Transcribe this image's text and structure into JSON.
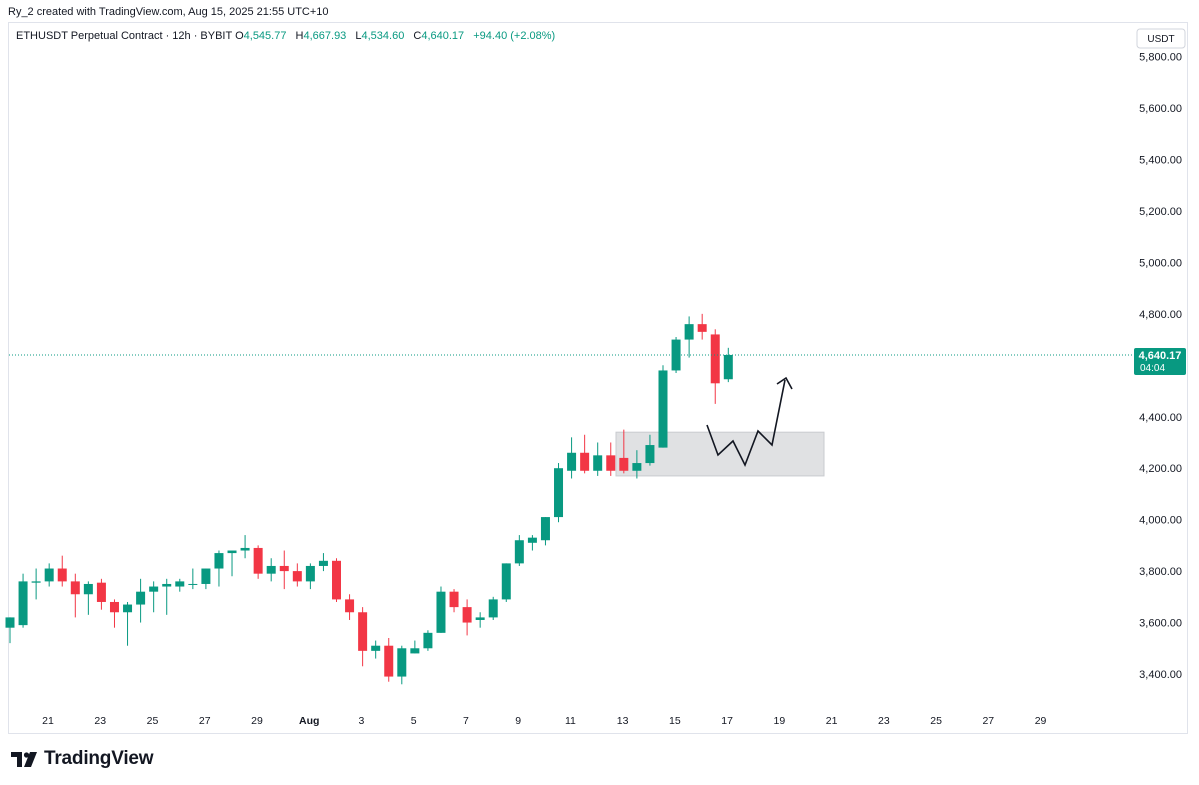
{
  "header": {
    "attribution": "Ry_2 created with TradingView.com, Aug 15, 2025 21:55 UTC+10"
  },
  "legend": {
    "symbol": "ETHUSDT Perpetual Contract · 12h · BYBIT",
    "o_label": "O",
    "o_value": "4,545.77",
    "h_label": "H",
    "h_value": "4,667.93",
    "l_label": "L",
    "l_value": "4,534.60",
    "c_label": "C",
    "c_value": "4,640.17",
    "change": "+94.40 (+2.08%)"
  },
  "price_axis": {
    "currency": "USDT",
    "tick_labels": [
      "5,800.00",
      "5,600.00",
      "5,400.00",
      "5,200.00",
      "5,000.00",
      "4,800.00",
      "4,400.00",
      "4,200.00",
      "4,000.00",
      "3,800.00",
      "3,600.00",
      "3,400.00"
    ],
    "last_price_label": "4,640.17",
    "countdown": "04:04"
  },
  "time_axis": {
    "tick_labels": [
      "21",
      "23",
      "25",
      "27",
      "29",
      "Aug",
      "3",
      "5",
      "7",
      "9",
      "11",
      "13",
      "15",
      "17",
      "19",
      "21",
      "23",
      "25",
      "27",
      "29"
    ]
  },
  "colors": {
    "up": "#089981",
    "down": "#f23645",
    "zone": "#e0e1e3",
    "grid": "#f0f3fa"
  },
  "chart_data": {
    "type": "candlestick",
    "symbol": "ETHUSDT",
    "interval": "12h",
    "exchange": "BYBIT",
    "y_range": [
      3250,
      5900
    ],
    "y_ticks": [
      3400,
      3600,
      3800,
      4000,
      4200,
      4400,
      4800,
      5000,
      5200,
      5400,
      5600,
      5800
    ],
    "x_ticks": [
      "21",
      "23",
      "25",
      "27",
      "29",
      "Aug",
      "3",
      "5",
      "7",
      "9",
      "11",
      "13",
      "15",
      "17",
      "19",
      "21",
      "23",
      "25",
      "27",
      "29"
    ],
    "last_price": 4640.17,
    "candles": [
      {
        "o": 3580,
        "h": 3620,
        "l": 3520,
        "c": 3620
      },
      {
        "o": 3590,
        "h": 3790,
        "l": 3580,
        "c": 3760
      },
      {
        "o": 3755,
        "h": 3810,
        "l": 3690,
        "c": 3760
      },
      {
        "o": 3760,
        "h": 3830,
        "l": 3740,
        "c": 3810
      },
      {
        "o": 3810,
        "h": 3860,
        "l": 3740,
        "c": 3760
      },
      {
        "o": 3760,
        "h": 3790,
        "l": 3620,
        "c": 3710
      },
      {
        "o": 3710,
        "h": 3760,
        "l": 3630,
        "c": 3750
      },
      {
        "o": 3755,
        "h": 3770,
        "l": 3650,
        "c": 3680
      },
      {
        "o": 3680,
        "h": 3690,
        "l": 3580,
        "c": 3640
      },
      {
        "o": 3640,
        "h": 3680,
        "l": 3510,
        "c": 3670
      },
      {
        "o": 3670,
        "h": 3770,
        "l": 3600,
        "c": 3720
      },
      {
        "o": 3720,
        "h": 3760,
        "l": 3640,
        "c": 3740
      },
      {
        "o": 3740,
        "h": 3770,
        "l": 3630,
        "c": 3750
      },
      {
        "o": 3740,
        "h": 3770,
        "l": 3720,
        "c": 3760
      },
      {
        "o": 3750,
        "h": 3810,
        "l": 3730,
        "c": 3750
      },
      {
        "o": 3750,
        "h": 3810,
        "l": 3730,
        "c": 3810
      },
      {
        "o": 3810,
        "h": 3880,
        "l": 3740,
        "c": 3870
      },
      {
        "o": 3870,
        "h": 3880,
        "l": 3780,
        "c": 3880
      },
      {
        "o": 3880,
        "h": 3940,
        "l": 3850,
        "c": 3890
      },
      {
        "o": 3890,
        "h": 3900,
        "l": 3770,
        "c": 3790
      },
      {
        "o": 3790,
        "h": 3850,
        "l": 3760,
        "c": 3820
      },
      {
        "o": 3820,
        "h": 3880,
        "l": 3730,
        "c": 3800
      },
      {
        "o": 3800,
        "h": 3830,
        "l": 3740,
        "c": 3760
      },
      {
        "o": 3760,
        "h": 3830,
        "l": 3730,
        "c": 3820
      },
      {
        "o": 3820,
        "h": 3870,
        "l": 3800,
        "c": 3840
      },
      {
        "o": 3840,
        "h": 3850,
        "l": 3680,
        "c": 3690
      },
      {
        "o": 3690,
        "h": 3710,
        "l": 3610,
        "c": 3640
      },
      {
        "o": 3640,
        "h": 3660,
        "l": 3430,
        "c": 3490
      },
      {
        "o": 3490,
        "h": 3530,
        "l": 3460,
        "c": 3510
      },
      {
        "o": 3510,
        "h": 3540,
        "l": 3370,
        "c": 3390
      },
      {
        "o": 3390,
        "h": 3510,
        "l": 3360,
        "c": 3500
      },
      {
        "o": 3480,
        "h": 3530,
        "l": 3480,
        "c": 3500
      },
      {
        "o": 3500,
        "h": 3570,
        "l": 3490,
        "c": 3560
      },
      {
        "o": 3560,
        "h": 3740,
        "l": 3560,
        "c": 3720
      },
      {
        "o": 3720,
        "h": 3730,
        "l": 3640,
        "c": 3660
      },
      {
        "o": 3660,
        "h": 3690,
        "l": 3550,
        "c": 3600
      },
      {
        "o": 3610,
        "h": 3640,
        "l": 3580,
        "c": 3620
      },
      {
        "o": 3620,
        "h": 3700,
        "l": 3610,
        "c": 3690
      },
      {
        "o": 3690,
        "h": 3830,
        "l": 3680,
        "c": 3830
      },
      {
        "o": 3830,
        "h": 3940,
        "l": 3820,
        "c": 3920
      },
      {
        "o": 3910,
        "h": 3940,
        "l": 3880,
        "c": 3930
      },
      {
        "o": 3920,
        "h": 4010,
        "l": 3900,
        "c": 4010
      },
      {
        "o": 4010,
        "h": 4220,
        "l": 3990,
        "c": 4200
      },
      {
        "o": 4190,
        "h": 4320,
        "l": 4160,
        "c": 4260
      },
      {
        "o": 4260,
        "h": 4330,
        "l": 4180,
        "c": 4190
      },
      {
        "o": 4190,
        "h": 4300,
        "l": 4170,
        "c": 4250
      },
      {
        "o": 4250,
        "h": 4300,
        "l": 4170,
        "c": 4190
      },
      {
        "o": 4240,
        "h": 4350,
        "l": 4180,
        "c": 4190
      },
      {
        "o": 4190,
        "h": 4270,
        "l": 4160,
        "c": 4220
      },
      {
        "o": 4220,
        "h": 4330,
        "l": 4210,
        "c": 4290
      },
      {
        "o": 4280,
        "h": 4600,
        "l": 4280,
        "c": 4580
      },
      {
        "o": 4580,
        "h": 4710,
        "l": 4570,
        "c": 4700
      },
      {
        "o": 4700,
        "h": 4790,
        "l": 4630,
        "c": 4760
      },
      {
        "o": 4760,
        "h": 4800,
        "l": 4700,
        "c": 4730
      },
      {
        "o": 4720,
        "h": 4740,
        "l": 4450,
        "c": 4530
      },
      {
        "o": 4545.77,
        "h": 4667.93,
        "l": 4534.6,
        "c": 4640.17
      }
    ],
    "annotations": {
      "demand_zone": {
        "x_start": "Aug 11",
        "x_end": "Aug 19",
        "price_low": 4170,
        "price_high": 4340
      },
      "projected_path": [
        {
          "date": "Aug 15",
          "price": 4370
        },
        {
          "date": "Aug 16",
          "price": 4250
        },
        {
          "date": "Aug 16",
          "price": 4310
        },
        {
          "date": "Aug 17",
          "price": 4220
        },
        {
          "date": "Aug 18",
          "price": 4340
        },
        {
          "date": "Aug 18",
          "price": 4290
        },
        {
          "date": "Aug 19",
          "price": 4550
        }
      ]
    }
  }
}
